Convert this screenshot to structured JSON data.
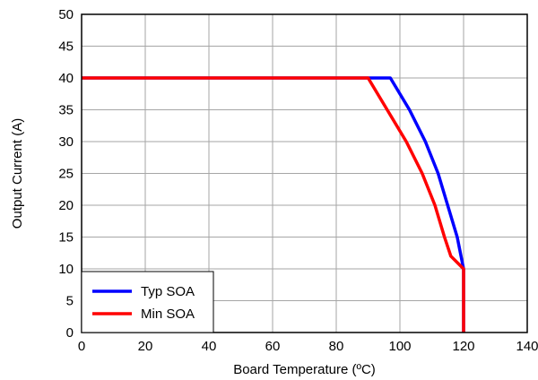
{
  "chart_data": {
    "type": "line",
    "title": "",
    "xlabel": "Board Temperature (ºC)",
    "ylabel": "Output Current (A)",
    "xlim": [
      0,
      140
    ],
    "ylim": [
      0,
      50
    ],
    "xticks": [
      "0",
      "20",
      "40",
      "60",
      "80",
      "100",
      "120",
      "140"
    ],
    "yticks": [
      "0",
      "5",
      "10",
      "15",
      "20",
      "25",
      "30",
      "35",
      "40",
      "45",
      "50"
    ],
    "grid": true,
    "legend_position": "bottom-left",
    "series": [
      {
        "name": "Typ SOA",
        "color": "#0000ff",
        "points": [
          [
            0,
            40
          ],
          [
            97,
            40
          ],
          [
            103,
            35
          ],
          [
            108,
            30
          ],
          [
            112,
            25
          ],
          [
            115,
            20
          ],
          [
            118,
            15
          ],
          [
            120,
            10
          ],
          [
            120,
            0
          ]
        ]
      },
      {
        "name": "Min SOA",
        "color": "#ff0000",
        "points": [
          [
            0,
            40
          ],
          [
            90,
            40
          ],
          [
            96,
            35
          ],
          [
            102,
            30
          ],
          [
            107,
            25
          ],
          [
            111,
            20
          ],
          [
            114,
            15
          ],
          [
            116,
            12
          ],
          [
            120,
            10
          ],
          [
            120,
            0
          ]
        ]
      }
    ]
  }
}
